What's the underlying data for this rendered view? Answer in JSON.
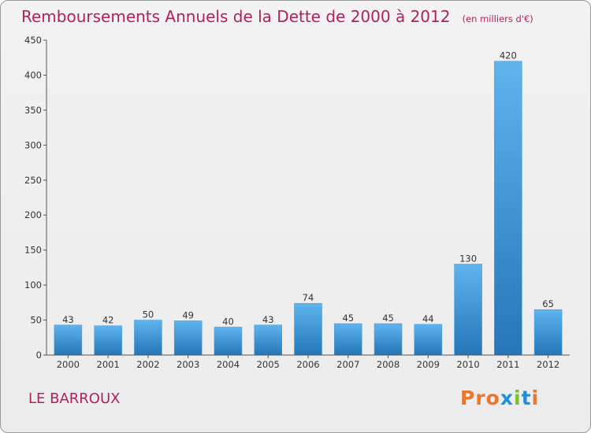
{
  "header": {
    "title": "Remboursements Annuels de la Dette de 2000 à 2012",
    "subtitle": "(en milliers d'€)"
  },
  "footer": {
    "commune": "LE BARROUX",
    "brand": "Proxiti"
  },
  "colors": {
    "title": "#b22060",
    "bar_light": "#5fb4ee",
    "bar_dark": "#2476b8",
    "brand": [
      "#e8762c",
      "#e8762c",
      "#e8762c",
      "#1e90d8",
      "#7cbf2a",
      "#1e90d8",
      "#e8762c"
    ]
  },
  "chart_data": {
    "type": "bar",
    "title": "Remboursements Annuels de la Dette de 2000 à 2012",
    "subtitle": "(en milliers d'€)",
    "categories": [
      "2000",
      "2001",
      "2002",
      "2003",
      "2004",
      "2005",
      "2006",
      "2007",
      "2008",
      "2009",
      "2010",
      "2011",
      "2012"
    ],
    "values": [
      43,
      42,
      50,
      49,
      40,
      43,
      74,
      45,
      45,
      44,
      130,
      420,
      65
    ],
    "ylim": [
      0,
      450
    ],
    "yticks": [
      0,
      50,
      100,
      150,
      200,
      250,
      300,
      350,
      400,
      450
    ],
    "grid": false,
    "legend": false
  }
}
